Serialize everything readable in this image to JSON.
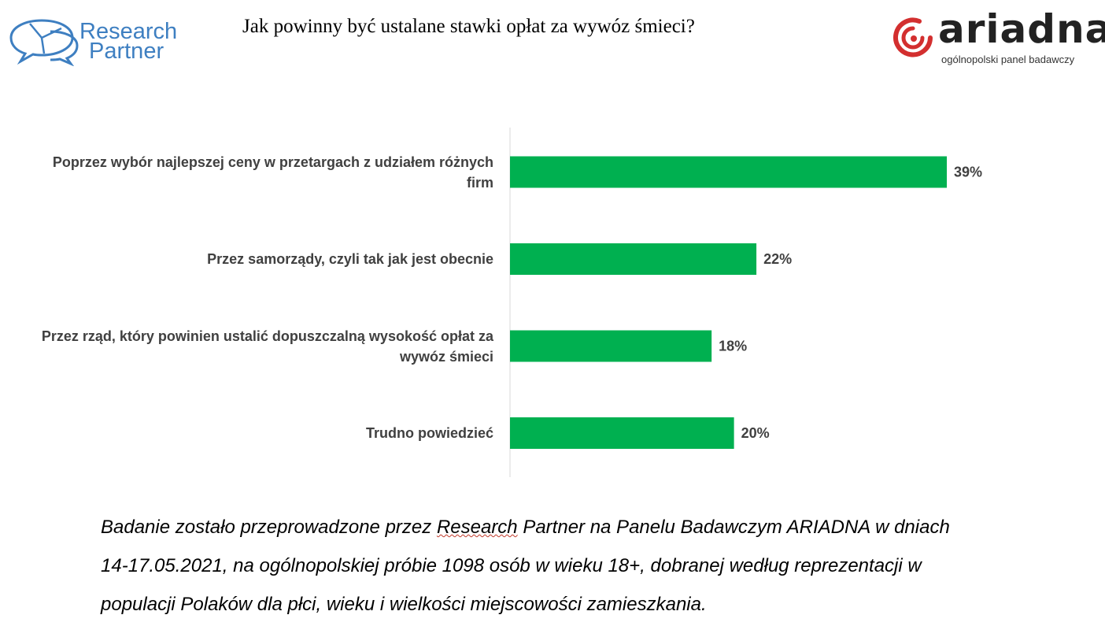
{
  "header": {
    "title": "Jak powinny być ustalane stawki opłat za wywóz śmieci?"
  },
  "logos": {
    "research_partner": {
      "line1": "Research",
      "line2": "Partner",
      "color": "#3e7fc1"
    },
    "ariadna": {
      "word": "ariadna",
      "tagline": "ogólnopolski panel badawczy",
      "accent": "#d32f2f"
    }
  },
  "chart_data": {
    "type": "bar",
    "orientation": "horizontal",
    "title": "Jak powinny być ustalane stawki opłat za wywóz śmieci?",
    "categories": [
      "Poprzez wybór najlepszej ceny w przetargach z udziałem różnych firm",
      "Przez samorządy, czyli tak jak jest obecnie",
      "Przez rząd, który powinien ustalić dopuszczalną wysokość opłat za wywóz śmieci",
      "Trudno powiedzieć"
    ],
    "category_label_lines": [
      [
        "Poprzez wybór najlepszej ceny w przetargach z udziałem różnych",
        "firm"
      ],
      [
        "Przez samorządy, czyli tak jak jest obecnie"
      ],
      [
        "Przez rząd, który powinien ustalić dopuszczalną wysokość opłat za",
        "wywóz śmieci"
      ],
      [
        "Trudno powiedzieć"
      ]
    ],
    "values": [
      39,
      22,
      18,
      20
    ],
    "value_labels": [
      "39%",
      "22%",
      "18%",
      "20%"
    ],
    "unit": "%",
    "xlim": [
      0,
      50
    ],
    "bar_color": "#00b050",
    "grid": false,
    "legend": "none"
  },
  "footnote": {
    "line1_before": "Badanie zostało przeprowadzone przez ",
    "line1_underlined": "Research",
    "line1_after": " Partner na Panelu Badawczym ARIADNA w dniach",
    "line2": "14-17.05.2021, na ogólnopolskiej próbie 1098 osób w wieku 18+, dobranej według reprezentacji w",
    "line3": "populacji Polaków dla płci, wieku i wielkości miejscowości zamieszkania."
  }
}
